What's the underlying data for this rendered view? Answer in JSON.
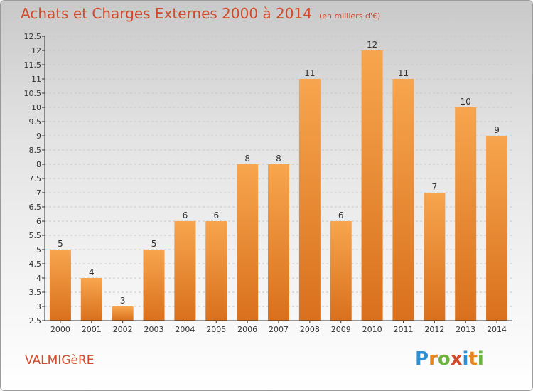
{
  "title": "Achats et Charges Externes 2000 à 2014",
  "subtitle": "(en milliers d'€)",
  "place": "VALMIGèRE",
  "logo": {
    "text": "Proxiti",
    "letters": [
      {
        "ch": "P",
        "color": "#2f8fd5"
      },
      {
        "ch": "r",
        "color": "#e8861e"
      },
      {
        "ch": "o",
        "color": "#6cb33e"
      },
      {
        "ch": "x",
        "color": "#d3492a"
      },
      {
        "ch": "i",
        "color": "#2f8fd5"
      },
      {
        "ch": "t",
        "color": "#e8861e"
      },
      {
        "ch": "i",
        "color": "#6cb33e"
      }
    ]
  },
  "colors": {
    "bar_top": "#f7a54e",
    "bar_bottom": "#d9701d",
    "title": "#d3492a",
    "axis": "#333333",
    "grid": "#c8c8c8"
  },
  "chart_data": {
    "type": "bar",
    "categories": [
      "2000",
      "2001",
      "2002",
      "2003",
      "2004",
      "2005",
      "2006",
      "2007",
      "2008",
      "2009",
      "2010",
      "2011",
      "2012",
      "2013",
      "2014"
    ],
    "values": [
      5,
      4,
      3,
      5,
      6,
      6,
      8,
      8,
      11,
      6,
      12,
      11,
      7,
      10,
      9
    ],
    "data_labels": [
      "5",
      "4",
      "3",
      "5",
      "6",
      "6",
      "8",
      "8",
      "11",
      "6",
      "12",
      "11",
      "7",
      "10",
      "9"
    ],
    "ylim": [
      2.5,
      12.5
    ],
    "yticks": [
      "2.5",
      "3",
      "3.5",
      "4",
      "4.5",
      "5",
      "5.5",
      "6",
      "6.5",
      "7",
      "7.5",
      "8",
      "8.5",
      "9",
      "9.5",
      "10",
      "10.5",
      "11",
      "11.5",
      "12",
      "12.5"
    ],
    "grid": true
  }
}
